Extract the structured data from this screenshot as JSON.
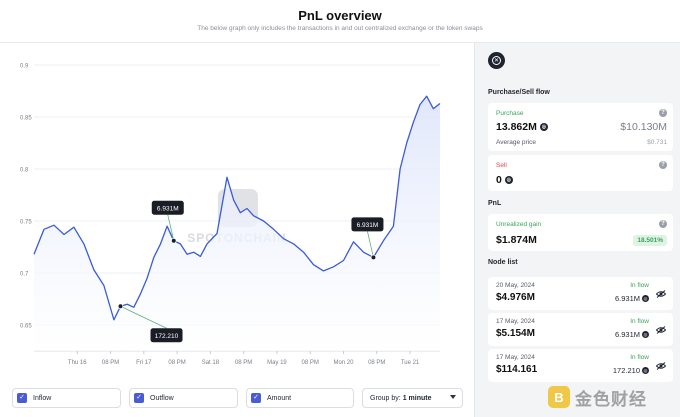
{
  "header": {
    "title": "PnL overview",
    "subtitle": "The below graph only includes the transactions in and out centralized exchange or the token swaps"
  },
  "chart_data": {
    "type": "line",
    "title": "",
    "xlabel": "",
    "ylabel": "",
    "ylim": [
      0.625,
      0.9
    ],
    "yticks": [
      "0.65",
      "0.7",
      "0.75",
      "0.8",
      "0.85",
      "0.9"
    ],
    "ytick_values": [
      0.65,
      0.7,
      0.75,
      0.8,
      0.85,
      0.9
    ],
    "xticks": [
      "Thu 16",
      "08 PM",
      "Fri 17",
      "08 PM",
      "Sat 18",
      "08 PM",
      "May 19",
      "08 PM",
      "Mon 20",
      "08 PM",
      "Tue 21"
    ],
    "xtick_positions": [
      1.3,
      2.3,
      3.3,
      4.3,
      5.3,
      6.3,
      7.3,
      8.3,
      9.3,
      10.3,
      11.3
    ],
    "xlim": [
      0,
      12.2
    ],
    "series": [
      {
        "name": "Price",
        "x": [
          0,
          0.3,
          0.6,
          0.9,
          1.2,
          1.5,
          1.8,
          2.1,
          2.4,
          2.6,
          2.8,
          3.0,
          3.2,
          3.4,
          3.6,
          3.8,
          4.0,
          4.2,
          4.4,
          4.6,
          4.8,
          5.0,
          5.2,
          5.5,
          5.8,
          6.0,
          6.2,
          6.4,
          6.6,
          6.9,
          7.2,
          7.5,
          7.8,
          8.1,
          8.4,
          8.7,
          9.0,
          9.3,
          9.6,
          9.9,
          10.2,
          10.5,
          10.8,
          11.0,
          11.2,
          11.4,
          11.6,
          11.8,
          12.0,
          12.2
        ],
        "values": [
          0.718,
          0.742,
          0.746,
          0.737,
          0.744,
          0.728,
          0.703,
          0.688,
          0.655,
          0.668,
          0.67,
          0.667,
          0.68,
          0.695,
          0.715,
          0.728,
          0.745,
          0.731,
          0.728,
          0.718,
          0.72,
          0.716,
          0.728,
          0.738,
          0.792,
          0.77,
          0.758,
          0.762,
          0.755,
          0.75,
          0.742,
          0.733,
          0.728,
          0.72,
          0.708,
          0.702,
          0.706,
          0.712,
          0.73,
          0.72,
          0.715,
          0.731,
          0.745,
          0.8,
          0.825,
          0.845,
          0.862,
          0.87,
          0.858,
          0.863
        ]
      }
    ],
    "annotations": [
      {
        "label": "6.931M",
        "point_index": 17,
        "direction": "above"
      },
      {
        "label": "172.210",
        "point_index": 9,
        "direction": "below"
      },
      {
        "label": "6.931M",
        "point_index": 40,
        "direction": "above"
      }
    ],
    "watermark": "SPOTONCHAIN"
  },
  "controls": {
    "inflow_label": "Inflow",
    "outflow_label": "Outflow",
    "amount_label": "Amount",
    "group_by_prefix": "Group by:",
    "group_by_value": "1 minute",
    "checkmark": "✓"
  },
  "panel": {
    "close_icon": "✕",
    "purchase_sell_title": "Purchase/Sell flow",
    "purchase_label": "Purchase",
    "purchase_amount": "13.862M",
    "purchase_usd": "$10.130M",
    "avg_price_label": "Average price",
    "avg_price_value": "$0.731",
    "sell_label": "Sell",
    "sell_amount": "0",
    "pnl_title": "PnL",
    "unrealized_label": "Unrealized gain",
    "unrealized_value": "$1.874M",
    "unrealized_pct": "18.501%",
    "node_list_title": "Node list",
    "help_glyph": "?",
    "coin_glyph": "◎",
    "nodes": [
      {
        "date": "20 May, 2024",
        "usd": "$4.976M",
        "direction": "In flow",
        "amount": "6.931M"
      },
      {
        "date": "17 May, 2024",
        "usd": "$5.154M",
        "direction": "In flow",
        "amount": "6.931M"
      },
      {
        "date": "17 May, 2024",
        "usd": "$114.161",
        "direction": "In flow",
        "amount": "172.210"
      }
    ]
  },
  "watermark_text": {
    "logo": "B",
    "text": "金色财经"
  },
  "colors": {
    "line": "#3b5bd6",
    "fill_top": "#dfe6fb",
    "grid": "#eceff4",
    "tooltip_bg": "#1a1d26",
    "accent_green": "#3aa45b",
    "accent_red": "#e0454f",
    "checkbox": "#4a5bd4"
  }
}
